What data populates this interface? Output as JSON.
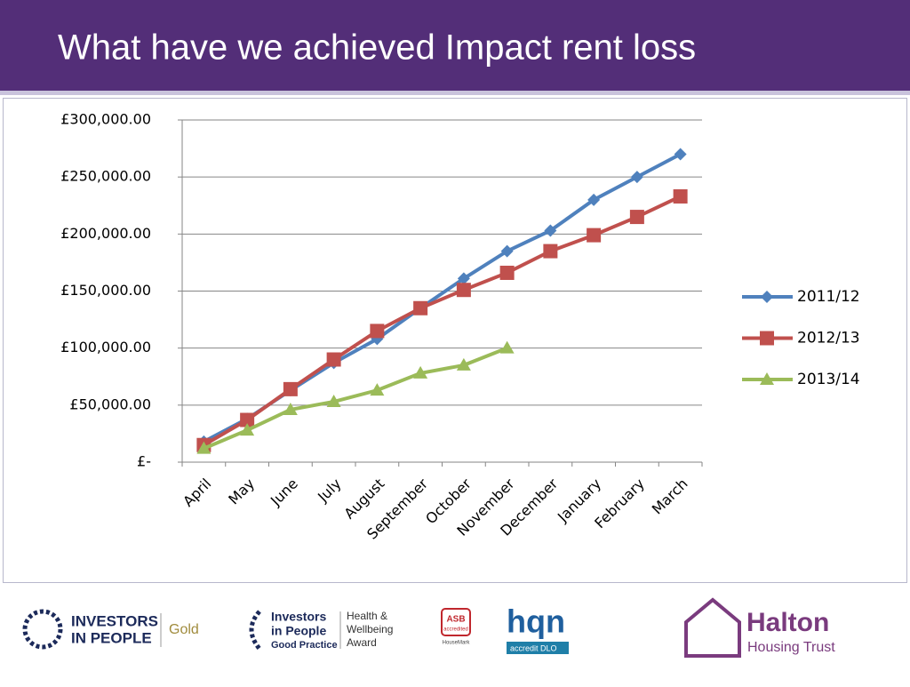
{
  "header": {
    "title": "What have we achieved  Impact rent loss"
  },
  "chart_data": {
    "type": "line",
    "categories": [
      "April",
      "May",
      "June",
      "July",
      "August",
      "September",
      "October",
      "November",
      "December",
      "January",
      "February",
      "March"
    ],
    "series": [
      {
        "name": "2011/12",
        "color": "#4f81bd",
        "marker": "diamond",
        "values": [
          18000,
          38000,
          63000,
          87000,
          108000,
          135000,
          161000,
          185000,
          203000,
          230000,
          250000,
          270000
        ]
      },
      {
        "name": "2012/13",
        "color": "#c0504d",
        "marker": "square",
        "values": [
          15000,
          37000,
          64000,
          90000,
          115000,
          135000,
          151000,
          166000,
          185000,
          199000,
          215000,
          233000
        ]
      },
      {
        "name": "2013/14",
        "color": "#9bbb59",
        "marker": "triangle",
        "values": [
          12000,
          28000,
          46000,
          53000,
          63000,
          78000,
          85000,
          100000,
          null,
          null,
          null,
          null
        ]
      }
    ],
    "ylim": [
      0,
      300000
    ],
    "yticks": [
      {
        "value": 0,
        "label": "£-"
      },
      {
        "value": 50000,
        "label": "£50,000.00"
      },
      {
        "value": 100000,
        "label": "£100,000.00"
      },
      {
        "value": 150000,
        "label": "£150,000.00"
      },
      {
        "value": 200000,
        "label": "£200,000.00"
      },
      {
        "value": 250000,
        "label": "£250,000.00"
      },
      {
        "value": 300000,
        "label": "£300,000.00"
      }
    ],
    "grid": true,
    "legend": "right"
  },
  "footer": {
    "iip1": "INVESTORS",
    "iip2": "IN PEOPLE",
    "gold": "Gold",
    "gp1": "Investors",
    "gp2": "in People",
    "gp3": "Good Practice",
    "hw1": "Health &",
    "hw2": "Wellbeing",
    "hw3": "Award",
    "asb": "ASB",
    "asb2": "accredited",
    "housemark": "HouseMark",
    "hqn": "hqn",
    "dlo": "accredit DLO",
    "halton": "Halton",
    "trust": "Housing Trust"
  }
}
